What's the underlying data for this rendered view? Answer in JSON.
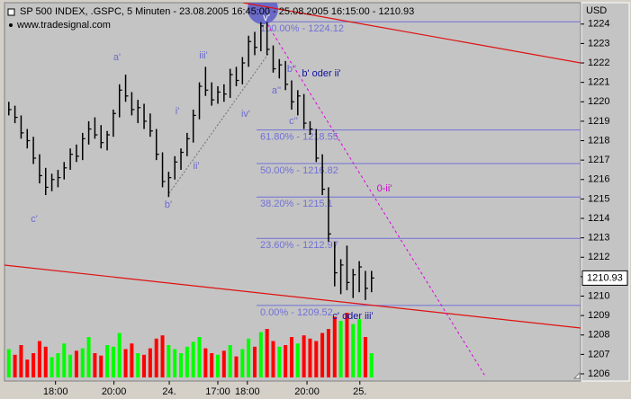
{
  "chart_data": {
    "type": "ohlc",
    "title": "SP 500 INDEX, .GSPC, 5 Minuten - 23.08.2005 16:45:00 - 25.08.2005 16:15:00 - 1210.93",
    "subtitle": "www.tradesignal.com",
    "y_axis_label": "USD",
    "color": "#000000",
    "volume_up_color": "#00ff00",
    "volume_down_color": "#ff0000",
    "high": [
      1220.0,
      1219.8,
      1219.3,
      1218.6,
      1218.2,
      1217.3,
      1216.6,
      1216.3,
      1216.5,
      1216.9,
      1217.6,
      1217.8,
      1218.4,
      1219.0,
      1219.2,
      1218.8,
      1218.5,
      1219.6,
      1220.9,
      1221.4,
      1220.5,
      1220.1,
      1219.9,
      1219.4,
      1218.6,
      1217.4,
      1216.4,
      1217.2,
      1217.6,
      1218.4,
      1219.6,
      1221.0,
      1221.8,
      1221.0,
      1220.8,
      1220.9,
      1221.7,
      1221.8,
      1222.3,
      1223.4,
      1223.6,
      1224.1,
      1224.1,
      1222.9,
      1222.2,
      1222.1,
      1221.1,
      1220.6,
      1220.4,
      1219.0,
      1218.6,
      1217.3,
      1215.6,
      1212.8,
      1211.9,
      1212.6,
      1211.4,
      1211.8,
      1211.3,
      1211.3
    ],
    "low": [
      1219.3,
      1218.9,
      1218.1,
      1217.6,
      1216.8,
      1215.8,
      1215.2,
      1215.4,
      1215.6,
      1216.0,
      1216.5,
      1216.9,
      1217.0,
      1217.8,
      1218.1,
      1217.6,
      1217.5,
      1218.2,
      1219.2,
      1220.0,
      1219.3,
      1218.9,
      1218.6,
      1218.2,
      1217.0,
      1215.6,
      1215.1,
      1216.0,
      1216.5,
      1217.2,
      1217.9,
      1219.1,
      1220.3,
      1219.8,
      1219.9,
      1220.0,
      1220.2,
      1220.8,
      1220.9,
      1221.8,
      1222.4,
      1222.6,
      1222.4,
      1221.5,
      1221.2,
      1220.6,
      1219.6,
      1219.3,
      1218.6,
      1218.3,
      1216.9,
      1215.2,
      1212.8,
      1210.5,
      1210.1,
      1210.3,
      1209.9,
      1210.2,
      1209.8,
      1210.2
    ],
    "close": [
      1219.6,
      1219.2,
      1218.4,
      1218.0,
      1217.1,
      1216.2,
      1215.6,
      1216.0,
      1216.1,
      1216.6,
      1217.3,
      1217.2,
      1218.1,
      1218.6,
      1218.3,
      1217.9,
      1218.3,
      1219.4,
      1220.6,
      1220.3,
      1219.6,
      1219.7,
      1219.0,
      1218.5,
      1217.3,
      1215.9,
      1216.1,
      1216.9,
      1217.4,
      1218.1,
      1219.3,
      1220.8,
      1220.6,
      1220.1,
      1220.5,
      1220.4,
      1221.4,
      1221.1,
      1222.0,
      1223.1,
      1222.8,
      1223.9,
      1222.7,
      1221.7,
      1221.9,
      1220.9,
      1220.0,
      1220.3,
      1218.9,
      1218.6,
      1217.1,
      1215.5,
      1213.2,
      1211.2,
      1211.6,
      1210.7,
      1211.1,
      1211.5,
      1210.4,
      1210.93
    ],
    "volume": [
      35,
      28,
      40,
      22,
      30,
      45,
      38,
      25,
      30,
      42,
      28,
      33,
      36,
      50,
      30,
      27,
      40,
      38,
      55,
      35,
      42,
      30,
      28,
      36,
      48,
      52,
      40,
      35,
      30,
      38,
      44,
      50,
      36,
      30,
      28,
      33,
      40,
      26,
      35,
      48,
      38,
      56,
      60,
      45,
      38,
      40,
      50,
      42,
      52,
      48,
      45,
      55,
      60,
      75,
      70,
      80,
      66,
      72,
      50,
      30
    ],
    "xlim": [
      -0.7,
      93
    ],
    "xticks": [
      {
        "value": 7.6,
        "label": "18:00"
      },
      {
        "value": 17.1,
        "label": "20:00"
      },
      {
        "value": 26.1,
        "label": "24."
      },
      {
        "value": 34,
        "label": "17:00"
      },
      {
        "value": 38.8,
        "label": "18:00"
      },
      {
        "value": 48.5,
        "label": "20:00"
      },
      {
        "value": 57.1,
        "label": "25."
      }
    ],
    "ylim": [
      1205.63,
      1225.1
    ],
    "yticks": [
      1206,
      1207,
      1208,
      1209,
      1210,
      1211,
      1212,
      1213,
      1214,
      1215,
      1216,
      1217,
      1218,
      1219,
      1220,
      1221,
      1222,
      1223,
      1224
    ],
    "fib_color": "#7070d8",
    "fib_levels": [
      {
        "value": 1224.12,
        "label": "100.00% - 1224.12"
      },
      {
        "value": 1218.55,
        "label": "61.80% - 1218.55"
      },
      {
        "value": 1216.82,
        "label": "50.00% - 1216.82"
      },
      {
        "value": 1215.1,
        "label": "38.20% - 1215.1"
      },
      {
        "value": 1212.97,
        "label": "23.60% - 1212.97"
      },
      {
        "value": 1209.52,
        "label": "0.00% - 1209.52"
      }
    ],
    "annotations": [
      "c'",
      "a'",
      "i'",
      "ii'",
      "iii'",
      "b'",
      "iv'",
      "v'",
      "a''",
      "b''",
      "c''",
      "b' oder ii'",
      "0-ii'",
      "c' oder iii'"
    ]
  }
}
